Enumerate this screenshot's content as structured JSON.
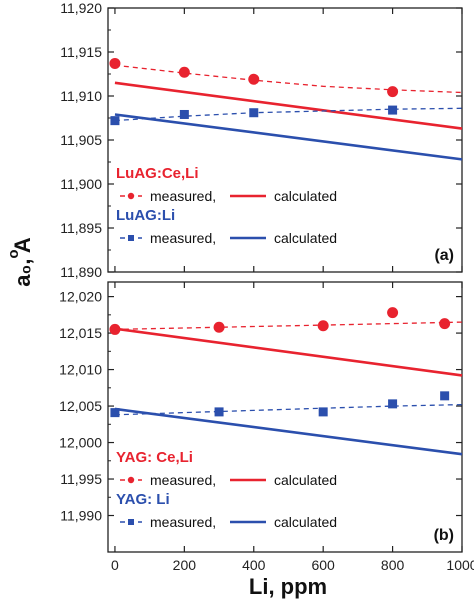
{
  "colors": {
    "red": "#e8232f",
    "blue": "#2b4fad"
  },
  "chart_data": [
    {
      "type": "scatter",
      "panel_label": "(a)",
      "xlim": [
        -20,
        1000
      ],
      "ylim": [
        11.89,
        11.92
      ],
      "y_ticks": [
        "11,890",
        "11,895",
        "11,900",
        "11,905",
        "11,910",
        "11,915",
        "11,920"
      ],
      "y_tick_values": [
        11.89,
        11.895,
        11.9,
        11.905,
        11.91,
        11.915,
        11.92
      ],
      "legend": [
        {
          "title": "LuAG:Ce,Li",
          "color": "#e8232f",
          "measured_label": "measured,",
          "calculated_label": "calculated"
        },
        {
          "title": "LuAG:Li",
          "color": "#2b4fad",
          "measured_label": "measured,",
          "calculated_label": "calculated"
        }
      ],
      "series": [
        {
          "name": "LuAG:Ce,Li measured",
          "color": "#e8232f",
          "marker": "circle",
          "points": [
            [
              0,
              11.9137
            ],
            [
              200,
              11.9127
            ],
            [
              400,
              11.9119
            ],
            [
              800,
              11.9105
            ]
          ],
          "fit": [
            [
              0,
              11.9135
            ],
            [
              200,
              11.9126
            ],
            [
              400,
              11.9118
            ],
            [
              600,
              11.9111
            ],
            [
              800,
              11.9107
            ],
            [
              1000,
              11.9104
            ]
          ]
        },
        {
          "name": "LuAG:Ce,Li calculated",
          "color": "#e8232f",
          "line": "solid",
          "line_points": [
            [
              0,
              11.9115
            ],
            [
              1000,
              11.9063
            ]
          ]
        },
        {
          "name": "LuAG:Li measured",
          "color": "#2b4fad",
          "marker": "square",
          "points": [
            [
              0,
              11.9072
            ],
            [
              200,
              11.9079
            ],
            [
              400,
              11.9081
            ],
            [
              800,
              11.9084
            ]
          ],
          "fit": [
            [
              0,
              11.9072
            ],
            [
              200,
              11.9077
            ],
            [
              400,
              11.9081
            ],
            [
              600,
              11.9083
            ],
            [
              800,
              11.9085
            ],
            [
              1000,
              11.9086
            ]
          ]
        },
        {
          "name": "LuAG:Li calculated",
          "color": "#2b4fad",
          "line": "solid",
          "line_points": [
            [
              0,
              11.9079
            ],
            [
              1000,
              11.9028
            ]
          ]
        }
      ]
    },
    {
      "type": "scatter",
      "panel_label": "(b)",
      "xlim": [
        -20,
        1000
      ],
      "ylim": [
        11.985,
        12.022
      ],
      "y_ticks": [
        "11,990",
        "11,995",
        "12,000",
        "12,005",
        "12,010",
        "12,015",
        "12,020"
      ],
      "y_tick_values": [
        11.99,
        11.995,
        12.0,
        12.005,
        12.01,
        12.015,
        12.02
      ],
      "x_ticks": [
        "0",
        "200",
        "400",
        "600",
        "800",
        "1000"
      ],
      "x_tick_values": [
        0,
        200,
        400,
        600,
        800,
        1000
      ],
      "legend": [
        {
          "title": "YAG: Ce,Li",
          "color": "#e8232f",
          "measured_label": "measured,",
          "calculated_label": "calculated"
        },
        {
          "title": "YAG: Li",
          "color": "#2b4fad",
          "measured_label": "measured,",
          "calculated_label": "calculated"
        }
      ],
      "series": [
        {
          "name": "YAG: Ce,Li measured",
          "color": "#e8232f",
          "marker": "circle",
          "points": [
            [
              0,
              12.0155
            ],
            [
              300,
              12.0158
            ],
            [
              600,
              12.016
            ],
            [
              800,
              12.0178
            ],
            [
              950,
              12.0163
            ]
          ],
          "fit": [
            [
              0,
              12.0155
            ],
            [
              200,
              12.0157
            ],
            [
              400,
              12.0159
            ],
            [
              600,
              12.0161
            ],
            [
              800,
              12.0163
            ],
            [
              1000,
              12.0165
            ]
          ]
        },
        {
          "name": "YAG: Ce,Li calculated",
          "color": "#e8232f",
          "line": "solid",
          "line_points": [
            [
              0,
              12.0156
            ],
            [
              1000,
              12.0092
            ]
          ]
        },
        {
          "name": "YAG: Li measured",
          "color": "#2b4fad",
          "marker": "square",
          "points": [
            [
              0,
              12.0041
            ],
            [
              300,
              12.0042
            ],
            [
              600,
              12.0042
            ],
            [
              800,
              12.0053
            ],
            [
              950,
              12.0064
            ]
          ],
          "fit": [
            [
              0,
              12.0038
            ],
            [
              200,
              12.0041
            ],
            [
              400,
              12.0044
            ],
            [
              600,
              12.0047
            ],
            [
              800,
              12.005
            ],
            [
              1000,
              12.0052
            ]
          ]
        },
        {
          "name": "YAG: Li calculated",
          "color": "#2b4fad",
          "line": "solid",
          "line_points": [
            [
              0,
              12.0046
            ],
            [
              1000,
              11.9984
            ]
          ]
        }
      ]
    }
  ],
  "y_axis_title": "a₀, A",
  "y_axis_ring": "o",
  "x_axis_title": "Li, ppm"
}
